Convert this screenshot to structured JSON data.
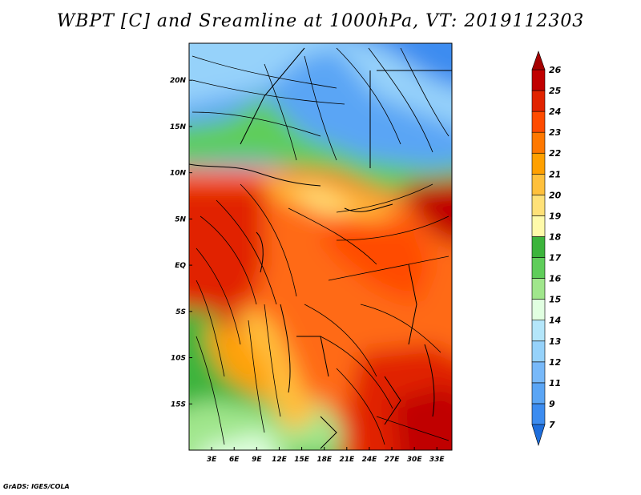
{
  "title": "WBPT [C] and Sreamline at 1000hPa, VT: 2019112303",
  "credit": "GrADS: IGES/COLA",
  "map": {
    "variable": "WBPT [C]",
    "level": "1000hPa",
    "valid_time": "2019112303",
    "lat_range": [
      -20,
      24
    ],
    "lon_range": [
      0,
      35
    ],
    "lat_labels": [
      "20N",
      "15N",
      "10N",
      "5N",
      "EQ",
      "5S",
      "10S",
      "15S"
    ],
    "lat_values": [
      20,
      15,
      10,
      5,
      0,
      -5,
      -10,
      -15
    ],
    "lon_labels": [
      "3E",
      "6E",
      "9E",
      "12E",
      "15E",
      "18E",
      "21E",
      "24E",
      "27E",
      "30E",
      "33E"
    ],
    "lon_values": [
      3,
      6,
      9,
      12,
      15,
      18,
      21,
      24,
      27,
      30,
      33
    ]
  },
  "colorbar": {
    "labels": [
      "7",
      "9",
      "11",
      "12",
      "13",
      "14",
      "15",
      "16",
      "17",
      "18",
      "19",
      "20",
      "21",
      "22",
      "23",
      "24",
      "25",
      "26"
    ],
    "colors": [
      "#1e6edc",
      "#3c8cf0",
      "#5aa5f5",
      "#78b9f9",
      "#96d2fa",
      "#b4e6fa",
      "#e1ffe1",
      "#a0e68c",
      "#5fcd5a",
      "#3cb43c",
      "#fffaaa",
      "#ffe178",
      "#ffc03c",
      "#ffa000",
      "#ff7800",
      "#ff4b00",
      "#e12300",
      "#c00000",
      "#a50000"
    ]
  }
}
